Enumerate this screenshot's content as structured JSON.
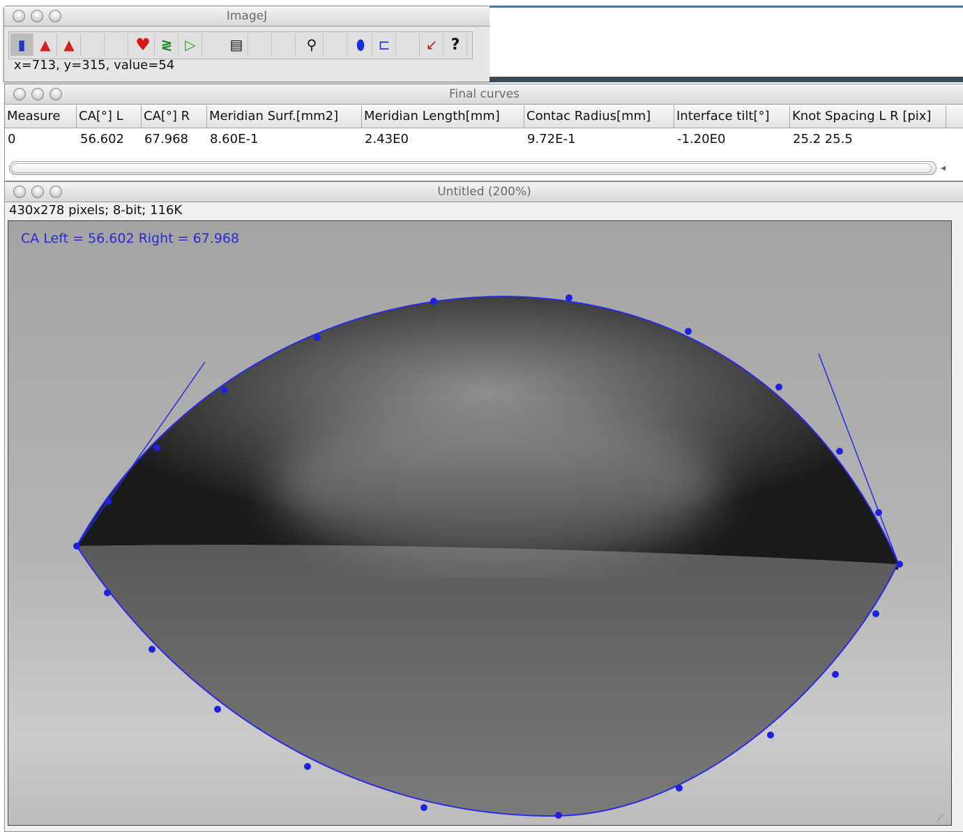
{
  "imagej_window": {
    "title": "ImageJ",
    "status": "x=713, y=315, value=54",
    "tools": [
      {
        "name": "rectangle-tool-icon",
        "glyph": "▮"
      },
      {
        "name": "oval-tool-icon",
        "glyph": "▲"
      },
      {
        "name": "polygon-tool-icon",
        "glyph": "▲"
      },
      {
        "name": "heart-tool-icon",
        "glyph": "♥"
      },
      {
        "name": "spiral-tool-icon",
        "glyph": "≷"
      },
      {
        "name": "play-tool-icon",
        "glyph": "▷"
      },
      {
        "name": "document-tool-icon",
        "glyph": "▤"
      },
      {
        "name": "magnifier-tool-icon",
        "glyph": "⚲"
      },
      {
        "name": "dropper-tool-icon",
        "glyph": "⬮"
      },
      {
        "name": "stack-tool-icon",
        "glyph": "⊏"
      },
      {
        "name": "plugin-tool-icon",
        "glyph": "↙"
      },
      {
        "name": "help-tool-icon",
        "glyph": "?"
      }
    ]
  },
  "results_window": {
    "title": "Final curves",
    "columns": [
      "Measure",
      "CA[°] L",
      "CA[°] R",
      "Meridian Surf.[mm2]",
      "Meridian Length[mm]",
      "Contac Radius[mm]",
      "Interface tilt[°]",
      "Knot Spacing L R [pix]"
    ],
    "row": [
      "0",
      "56.602",
      "67.968",
      "8.60E-1",
      "2.43E0",
      "9.72E-1",
      "-1.20E0",
      "25.2 25.5"
    ]
  },
  "image_window": {
    "title": "Untitled (200%)",
    "info": "430x278 pixels; 8-bit; 116K",
    "overlay_label": "CA Left = 56.602 Right = 67.968"
  },
  "colors": {
    "overlay_blue": "#2020e0",
    "drop_dark": "#1e1e1e",
    "background_gray": "#ababab"
  }
}
